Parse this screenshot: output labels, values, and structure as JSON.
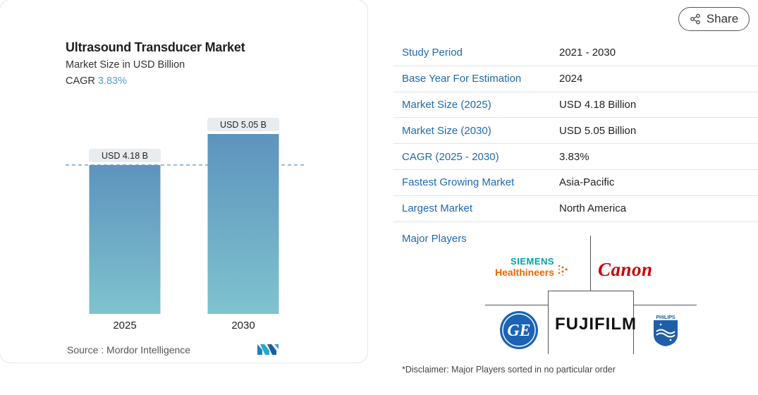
{
  "chart_card": {
    "title": "Ultrasound Transducer Market",
    "subtitle": "Market Size in USD Billion",
    "cagr_label": "CAGR",
    "cagr_value": "3.83%",
    "source": "Source :  Mordor Intelligence"
  },
  "chart_data": {
    "type": "bar",
    "categories": [
      "2025",
      "2030"
    ],
    "values": [
      4.18,
      5.05
    ],
    "data_labels": [
      "USD 4.18 B",
      "USD 5.05 B"
    ],
    "reference_line": 4.18,
    "colors": {
      "bar_top": "#5d93bd",
      "bar_bottom": "#7fc3cf",
      "label_bg": "#e9ecef",
      "ref_line": "#6a9cc0"
    }
  },
  "share": {
    "label": "Share"
  },
  "stats": [
    {
      "label": "Study Period",
      "value": "2021 - 2030"
    },
    {
      "label": "Base Year For Estimation",
      "value": "2024"
    },
    {
      "label": "Market Size (2025)",
      "value": "USD 4.18 Billion"
    },
    {
      "label": "Market Size (2030)",
      "value": "USD 5.05 Billion"
    },
    {
      "label": "CAGR (2025 - 2030)",
      "value": "3.83%"
    },
    {
      "label": "Fastest Growing Market",
      "value": "Asia-Pacific"
    },
    {
      "label": "Largest Market",
      "value": "North America"
    }
  ],
  "players": {
    "label": "Major Players",
    "siemens_line1": "SIEMENS",
    "siemens_line2": "Healthineers",
    "canon": "Canon",
    "fujifilm": "FUJIFILM",
    "ge": "GE",
    "philips": "PHILIPS"
  },
  "disclaimer": "*Disclaimer: Major Players sorted in no particular order",
  "colors": {
    "accent": "#1e69b0",
    "cagr": "#5a9fc8"
  }
}
